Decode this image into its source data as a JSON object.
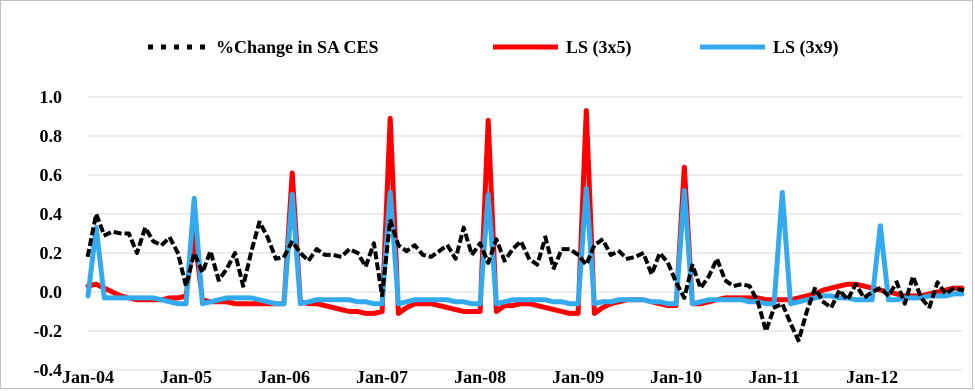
{
  "chart_data": {
    "type": "line",
    "title": "",
    "xlabel": "",
    "ylabel": "",
    "ylim": [
      -0.4,
      1.0
    ],
    "yticks": [
      -0.4,
      -0.2,
      0.0,
      0.2,
      0.4,
      0.6,
      0.8,
      1.0
    ],
    "ytick_labels": [
      "-0.4",
      "-0.2",
      "0.0",
      "0.2",
      "0.4",
      "0.6",
      "0.8",
      "1.0"
    ],
    "xtick_labels": [
      "Jan-04",
      "Jan-05",
      "Jan-06",
      "Jan-07",
      "Jan-08",
      "Jan-09",
      "Jan-10",
      "Jan-11",
      "Jan-12"
    ],
    "n_points": 108,
    "grid": "horizontal",
    "legend_position": "top",
    "series": [
      {
        "name": "%Change in SA CES",
        "color": "#000000",
        "style": "dotted",
        "values": [
          0.19,
          0.4,
          0.29,
          0.31,
          0.3,
          0.3,
          0.2,
          0.33,
          0.26,
          0.24,
          0.28,
          0.2,
          0.03,
          0.2,
          0.1,
          0.21,
          0.06,
          0.12,
          0.2,
          0.03,
          0.21,
          0.36,
          0.28,
          0.17,
          0.18,
          0.26,
          0.2,
          0.16,
          0.22,
          0.19,
          0.19,
          0.18,
          0.22,
          0.2,
          0.13,
          0.25,
          -0.02,
          0.37,
          0.24,
          0.21,
          0.24,
          0.19,
          0.18,
          0.21,
          0.24,
          0.17,
          0.33,
          0.19,
          0.25,
          0.15,
          0.27,
          0.16,
          0.22,
          0.26,
          0.17,
          0.14,
          0.28,
          0.12,
          0.22,
          0.22,
          0.19,
          0.14,
          0.24,
          0.27,
          0.19,
          0.21,
          0.17,
          0.18,
          0.2,
          0.09,
          0.2,
          0.15,
          0.05,
          -0.03,
          0.14,
          0.02,
          0.08,
          0.17,
          0.06,
          0.03,
          0.04,
          0.03,
          -0.05,
          -0.2,
          -0.08,
          -0.06,
          -0.16,
          -0.25,
          -0.1,
          0.02,
          -0.05,
          -0.08,
          0.01,
          -0.04,
          0.04,
          -0.03,
          0.0,
          0.02,
          -0.02,
          0.05,
          -0.06,
          0.08,
          -0.03,
          -0.08,
          0.05,
          -0.01,
          0.02,
          0.01
        ]
      },
      {
        "name": "LS (3x5)",
        "color": "#ff0000",
        "style": "solid",
        "values": [
          0.03,
          0.04,
          0.02,
          0.0,
          -0.02,
          -0.03,
          -0.04,
          -0.04,
          -0.04,
          -0.04,
          -0.03,
          -0.03,
          -0.02,
          0.3,
          -0.04,
          -0.05,
          -0.05,
          -0.05,
          -0.06,
          -0.06,
          -0.06,
          -0.06,
          -0.06,
          -0.06,
          -0.06,
          0.61,
          -0.05,
          -0.06,
          -0.06,
          -0.07,
          -0.08,
          -0.09,
          -0.1,
          -0.1,
          -0.11,
          -0.11,
          -0.1,
          0.89,
          -0.11,
          -0.08,
          -0.06,
          -0.06,
          -0.06,
          -0.07,
          -0.08,
          -0.09,
          -0.1,
          -0.1,
          -0.1,
          0.88,
          -0.1,
          -0.07,
          -0.07,
          -0.06,
          -0.06,
          -0.07,
          -0.08,
          -0.09,
          -0.1,
          -0.11,
          -0.11,
          0.93,
          -0.11,
          -0.08,
          -0.06,
          -0.05,
          -0.04,
          -0.04,
          -0.04,
          -0.05,
          -0.06,
          -0.07,
          -0.07,
          0.64,
          -0.06,
          -0.06,
          -0.05,
          -0.04,
          -0.03,
          -0.03,
          -0.03,
          -0.03,
          -0.03,
          -0.04,
          -0.04,
          -0.04,
          -0.04,
          -0.03,
          -0.02,
          -0.01,
          0.01,
          0.02,
          0.03,
          0.04,
          0.04,
          0.03,
          0.02,
          0.01,
          0.0,
          -0.01,
          -0.02,
          -0.02,
          -0.02,
          -0.01,
          0.0,
          0.01,
          0.02,
          0.02
        ]
      },
      {
        "name": "LS (3x9)",
        "color": "#33aaee",
        "style": "solid",
        "values": [
          -0.02,
          0.33,
          -0.03,
          -0.03,
          -0.03,
          -0.03,
          -0.03,
          -0.03,
          -0.03,
          -0.04,
          -0.05,
          -0.06,
          -0.06,
          0.48,
          -0.06,
          -0.05,
          -0.04,
          -0.03,
          -0.03,
          -0.03,
          -0.03,
          -0.04,
          -0.05,
          -0.06,
          -0.06,
          0.5,
          -0.06,
          -0.05,
          -0.04,
          -0.04,
          -0.04,
          -0.04,
          -0.04,
          -0.05,
          -0.05,
          -0.06,
          -0.06,
          0.51,
          -0.06,
          -0.05,
          -0.04,
          -0.04,
          -0.04,
          -0.04,
          -0.04,
          -0.05,
          -0.05,
          -0.06,
          -0.06,
          0.5,
          -0.06,
          -0.05,
          -0.04,
          -0.04,
          -0.04,
          -0.04,
          -0.04,
          -0.05,
          -0.05,
          -0.06,
          -0.06,
          0.53,
          -0.06,
          -0.05,
          -0.05,
          -0.04,
          -0.04,
          -0.04,
          -0.04,
          -0.05,
          -0.05,
          -0.06,
          -0.06,
          0.52,
          -0.06,
          -0.05,
          -0.04,
          -0.04,
          -0.04,
          -0.04,
          -0.04,
          -0.05,
          -0.05,
          -0.06,
          -0.06,
          0.51,
          -0.06,
          -0.05,
          -0.04,
          -0.03,
          -0.02,
          -0.02,
          -0.03,
          -0.03,
          -0.04,
          -0.04,
          -0.04,
          0.34,
          -0.04,
          -0.04,
          -0.03,
          -0.03,
          -0.03,
          -0.02,
          -0.02,
          -0.02,
          -0.01,
          -0.01
        ]
      }
    ]
  }
}
